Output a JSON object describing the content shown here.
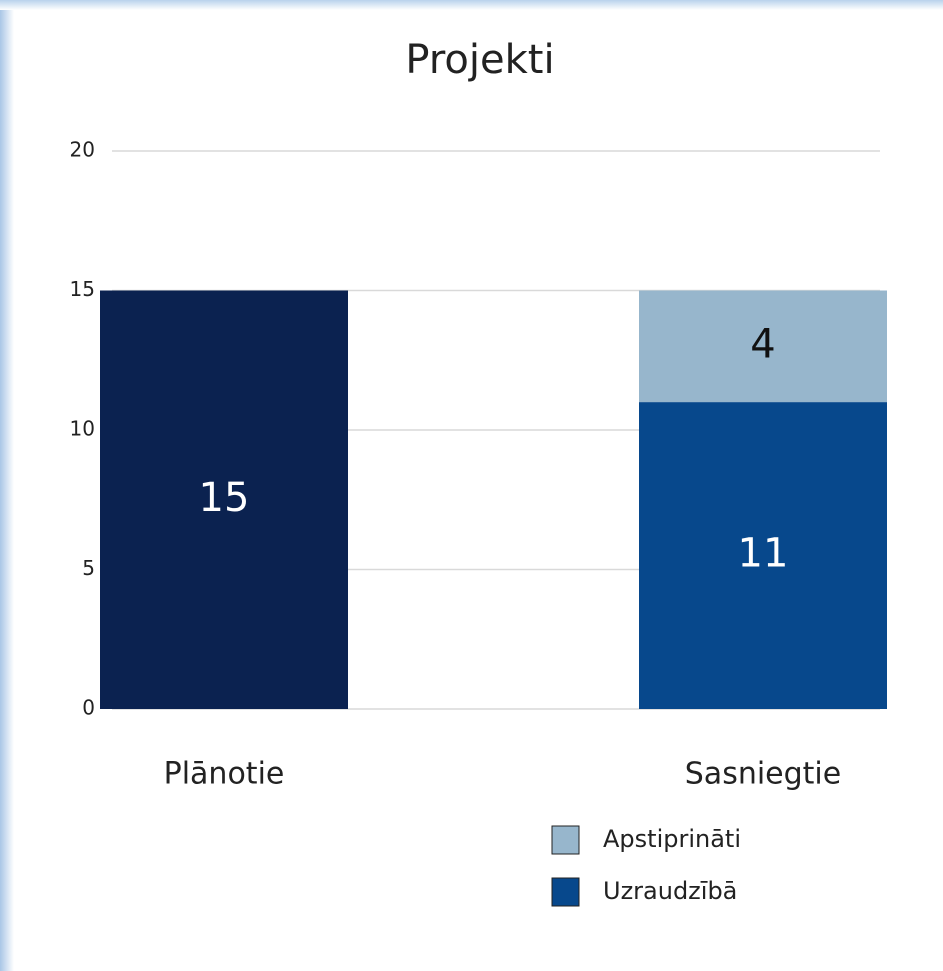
{
  "chart_data": {
    "type": "stacked_bar",
    "title": "Projekti",
    "categories": [
      "Plānotie",
      "Sasniegtie"
    ],
    "series": [
      {
        "color": "#0b2250",
        "values": [
          15,
          null
        ]
      },
      {
        "name": "Uzraudzībā",
        "color": "#07488c",
        "values": [
          null,
          11
        ]
      },
      {
        "name": "Apstiprināti",
        "color": "#97b6cc",
        "values": [
          null,
          4
        ]
      }
    ],
    "ylim": [
      0,
      20
    ],
    "yticks": [
      0,
      5,
      10,
      15,
      20
    ],
    "grid": true,
    "legend": "bottom-right"
  }
}
